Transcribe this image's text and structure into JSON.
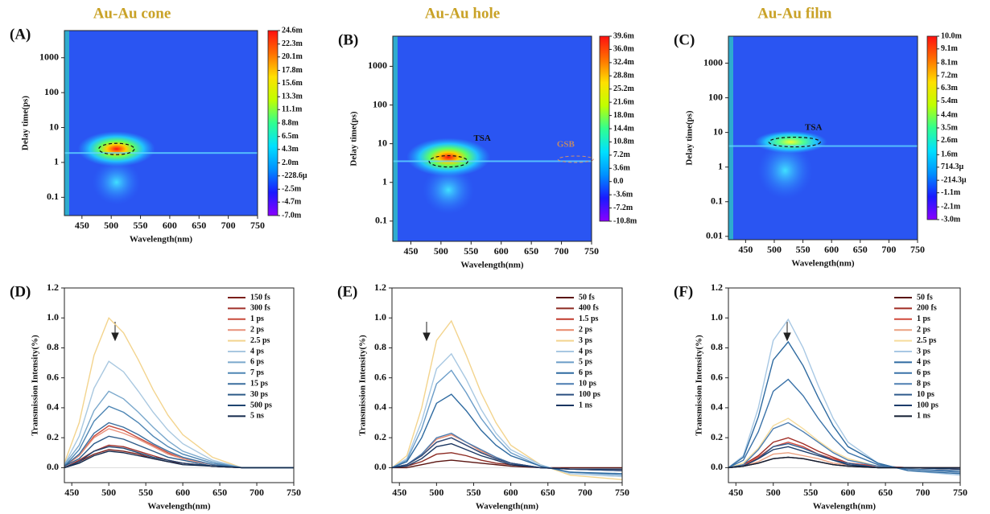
{
  "chart_data": [
    {
      "type": "heatmap",
      "label": "(A)",
      "title": "Au-Au cone",
      "x_label": "Wavelength(nm)",
      "y_label": "Delay time(ps)",
      "xlim": [
        420,
        750
      ],
      "xticks": [
        450,
        500,
        550,
        600,
        650,
        700,
        750
      ],
      "ylim": [
        0.03,
        6000
      ],
      "yticks": [
        0.1,
        1,
        10,
        100,
        1000
      ],
      "log_y": true,
      "annotations": [],
      "colormap": [
        "#8a00ff",
        "#1a1aff",
        "#0090ff",
        "#00e0ff",
        "#30ff90",
        "#c0ff00",
        "#ffe000",
        "#ff7000",
        "#ff1010"
      ],
      "clim": [
        -0.007,
        0.0246
      ],
      "cticks": [
        {
          "value": 0.0246,
          "label": "24.6m"
        },
        {
          "value": 0.0223,
          "label": "22.3m"
        },
        {
          "value": 0.0201,
          "label": "20.1m"
        },
        {
          "value": 0.0178,
          "label": "17.8m"
        },
        {
          "value": 0.0156,
          "label": "15.6m"
        },
        {
          "value": 0.0133,
          "label": "13.3m"
        },
        {
          "value": 0.0111,
          "label": "11.1m"
        },
        {
          "value": 0.0088,
          "label": "8.8m"
        },
        {
          "value": 0.0065,
          "label": "6.5m"
        },
        {
          "value": 0.0043,
          "label": "4.3m"
        },
        {
          "value": 0.002,
          "label": "2.0m"
        },
        {
          "value": -0.0002286,
          "label": "-228.6μ"
        },
        {
          "value": -0.0025,
          "label": "-2.5m"
        },
        {
          "value": -0.0047,
          "label": "-4.7m"
        },
        {
          "value": -0.007,
          "label": "-7.0m"
        }
      ]
    },
    {
      "type": "heatmap",
      "label": "(B)",
      "title": "Au-Au hole",
      "x_label": "Wavelength(nm)",
      "y_label": "Delay time(ps)",
      "xlim": [
        420,
        750
      ],
      "xticks": [
        450,
        500,
        550,
        600,
        650,
        700,
        750
      ],
      "ylim": [
        0.03,
        6000
      ],
      "yticks": [
        0.1,
        1,
        10,
        100,
        1000
      ],
      "log_y": true,
      "annotations": [
        "TSA",
        "GSB"
      ],
      "colormap": [
        "#8a00ff",
        "#1a1aff",
        "#0090ff",
        "#00e0ff",
        "#30ff90",
        "#c0ff00",
        "#ffe000",
        "#ff7000",
        "#ff1010"
      ],
      "clim": [
        -0.0108,
        0.0396
      ],
      "cticks": [
        {
          "value": 0.0396,
          "label": "39.6m"
        },
        {
          "value": 0.036,
          "label": "36.0m"
        },
        {
          "value": 0.0324,
          "label": "32.4m"
        },
        {
          "value": 0.0288,
          "label": "28.8m"
        },
        {
          "value": 0.0252,
          "label": "25.2m"
        },
        {
          "value": 0.0216,
          "label": "21.6m"
        },
        {
          "value": 0.018,
          "label": "18.0m"
        },
        {
          "value": 0.0144,
          "label": "14.4m"
        },
        {
          "value": 0.0108,
          "label": "10.8m"
        },
        {
          "value": 0.0072,
          "label": "7.2m"
        },
        {
          "value": 0.0036,
          "label": "3.6m"
        },
        {
          "value": 0,
          "label": "0.0"
        },
        {
          "value": -0.0036,
          "label": "-3.6m"
        },
        {
          "value": -0.0072,
          "label": "-7.2m"
        },
        {
          "value": -0.0108,
          "label": "-10.8m"
        }
      ]
    },
    {
      "type": "heatmap",
      "label": "(C)",
      "title": "Au-Au film",
      "x_label": "Wavelength(nm)",
      "y_label": "Delay time(ps)",
      "xlim": [
        420,
        750
      ],
      "xticks": [
        450,
        500,
        550,
        600,
        650,
        700,
        750
      ],
      "ylim": [
        0.008,
        6000
      ],
      "yticks": [
        0.01,
        0.1,
        1,
        10,
        100,
        1000
      ],
      "log_y": true,
      "annotations": [
        "TSA"
      ],
      "colormap": [
        "#8a00ff",
        "#1a1aff",
        "#0090ff",
        "#00e0ff",
        "#30ff90",
        "#c0ff00",
        "#ffe000",
        "#ff7000",
        "#ff1010"
      ],
      "clim": [
        -0.003,
        0.01
      ],
      "cticks": [
        {
          "value": 0.01,
          "label": "10.0m"
        },
        {
          "value": 0.0091,
          "label": "9.1m"
        },
        {
          "value": 0.0081,
          "label": "8.1m"
        },
        {
          "value": 0.0072,
          "label": "7.2m"
        },
        {
          "value": 0.0063,
          "label": "6.3m"
        },
        {
          "value": 0.0054,
          "label": "5.4m"
        },
        {
          "value": 0.0044,
          "label": "4.4m"
        },
        {
          "value": 0.0035,
          "label": "3.5m"
        },
        {
          "value": 0.0026,
          "label": "2.6m"
        },
        {
          "value": 0.0016,
          "label": "1.6m"
        },
        {
          "value": 0.0007143,
          "label": "714.3μ"
        },
        {
          "value": -0.0002143,
          "label": "-214.3μ"
        },
        {
          "value": -0.0011,
          "label": "-1.1m"
        },
        {
          "value": -0.0021,
          "label": "-2.1m"
        },
        {
          "value": -0.003,
          "label": "-3.0m"
        }
      ]
    },
    {
      "type": "line",
      "label": "(D)",
      "x_label": "Wavelength(nm)",
      "y_label": "Transmission Intensity(%)",
      "xlim": [
        440,
        750
      ],
      "xticks": [
        450,
        500,
        550,
        600,
        650,
        700,
        750
      ],
      "ylim": [
        -0.1,
        1.2
      ],
      "yticks": [
        {
          "value": 0,
          "label": "0.0"
        },
        0.2,
        0.4,
        0.6,
        0.8,
        {
          "value": 1,
          "label": "1.0"
        },
        1.2
      ],
      "x": [
        440,
        460,
        480,
        500,
        520,
        540,
        560,
        580,
        600,
        640,
        680,
        750
      ],
      "series": [
        {
          "name": "150 fs",
          "color": "#7a1f1a",
          "values": [
            0,
            0.04,
            0.09,
            0.12,
            0.11,
            0.09,
            0.06,
            0.04,
            0.03,
            0.01,
            0,
            0
          ]
        },
        {
          "name": "300 fs",
          "color": "#a0302a",
          "values": [
            0,
            0.05,
            0.11,
            0.15,
            0.14,
            0.11,
            0.08,
            0.05,
            0.03,
            0.01,
            0,
            0
          ]
        },
        {
          "name": "1 ps",
          "color": "#c84a3a",
          "values": [
            0.01,
            0.08,
            0.21,
            0.28,
            0.25,
            0.2,
            0.15,
            0.1,
            0.06,
            0.02,
            0,
            0
          ]
        },
        {
          "name": "2 ps",
          "color": "#e8907a",
          "values": [
            0.01,
            0.08,
            0.2,
            0.26,
            0.23,
            0.19,
            0.14,
            0.09,
            0.06,
            0.02,
            0,
            0
          ]
        },
        {
          "name": "2.5 ps",
          "color": "#f3d48e",
          "values": [
            0.03,
            0.3,
            0.75,
            1.0,
            0.9,
            0.72,
            0.52,
            0.35,
            0.22,
            0.07,
            0,
            0
          ]
        },
        {
          "name": "4 ps",
          "color": "#a9c8e0",
          "values": [
            0.02,
            0.21,
            0.53,
            0.71,
            0.64,
            0.51,
            0.37,
            0.25,
            0.16,
            0.05,
            0,
            0
          ]
        },
        {
          "name": "6 ps",
          "color": "#7aa8cc",
          "values": [
            0.02,
            0.15,
            0.38,
            0.51,
            0.46,
            0.37,
            0.27,
            0.18,
            0.11,
            0.04,
            0,
            0
          ]
        },
        {
          "name": "7 ps",
          "color": "#4e86b4",
          "values": [
            0.01,
            0.12,
            0.31,
            0.41,
            0.37,
            0.3,
            0.21,
            0.14,
            0.09,
            0.03,
            0,
            0
          ]
        },
        {
          "name": "15 ps",
          "color": "#3a6e9e",
          "values": [
            0.01,
            0.09,
            0.23,
            0.3,
            0.27,
            0.22,
            0.16,
            0.11,
            0.07,
            0.02,
            0,
            0
          ]
        },
        {
          "name": "30 ps",
          "color": "#2c5a88",
          "values": [
            0.01,
            0.06,
            0.16,
            0.21,
            0.19,
            0.15,
            0.11,
            0.07,
            0.05,
            0.01,
            0,
            0
          ]
        },
        {
          "name": "500 ps",
          "color": "#1f4470",
          "values": [
            0,
            0.04,
            0.11,
            0.14,
            0.13,
            0.1,
            0.07,
            0.05,
            0.03,
            0.01,
            0,
            0
          ]
        },
        {
          "name": "5 ns",
          "color": "#13294b",
          "values": [
            0,
            0.03,
            0.08,
            0.11,
            0.1,
            0.08,
            0.06,
            0.04,
            0.02,
            0.01,
            0,
            0
          ]
        }
      ]
    },
    {
      "type": "line",
      "label": "(E)",
      "x_label": "Wavelength(nm)",
      "y_label": "Transmission Intensity(%)",
      "xlim": [
        440,
        750
      ],
      "xticks": [
        450,
        500,
        550,
        600,
        650,
        700,
        750
      ],
      "ylim": [
        -0.1,
        1.2
      ],
      "yticks": [
        {
          "value": 0,
          "label": "0.0"
        },
        0.2,
        0.4,
        0.6,
        0.8,
        {
          "value": 1,
          "label": "1.0"
        },
        1.2
      ],
      "x": [
        440,
        460,
        480,
        500,
        520,
        540,
        560,
        580,
        600,
        640,
        680,
        750
      ],
      "series": [
        {
          "name": "50 fs",
          "color": "#5a1410",
          "values": [
            0,
            0,
            0.02,
            0.04,
            0.05,
            0.04,
            0.03,
            0.02,
            0.01,
            0,
            0,
            0
          ]
        },
        {
          "name": "400 fs",
          "color": "#8c2a22",
          "values": [
            0,
            0.01,
            0.04,
            0.09,
            0.1,
            0.08,
            0.05,
            0.03,
            0.02,
            0,
            -0.01,
            -0.01
          ]
        },
        {
          "name": "1.5 ps",
          "color": "#c0392b",
          "values": [
            0,
            0.02,
            0.08,
            0.17,
            0.2,
            0.15,
            0.1,
            0.06,
            0.03,
            0,
            -0.01,
            -0.02
          ]
        },
        {
          "name": "2 ps",
          "color": "#e8886a",
          "values": [
            0,
            0.02,
            0.09,
            0.19,
            0.22,
            0.17,
            0.11,
            0.07,
            0.03,
            0,
            -0.01,
            -0.02
          ]
        },
        {
          "name": "3 ps",
          "color": "#f3d48e",
          "values": [
            0,
            0.08,
            0.4,
            0.85,
            0.98,
            0.75,
            0.5,
            0.3,
            0.15,
            0.02,
            -0.05,
            -0.08
          ]
        },
        {
          "name": "4 ps",
          "color": "#a8c8e2",
          "values": [
            0,
            0.06,
            0.31,
            0.66,
            0.76,
            0.59,
            0.39,
            0.23,
            0.12,
            0.02,
            -0.04,
            -0.06
          ]
        },
        {
          "name": "5 ps",
          "color": "#6a9cc8",
          "values": [
            0,
            0.05,
            0.26,
            0.56,
            0.65,
            0.5,
            0.33,
            0.2,
            0.1,
            0.01,
            -0.03,
            -0.05
          ]
        },
        {
          "name": "6 ps",
          "color": "#2e6aa0",
          "values": [
            0,
            0.04,
            0.2,
            0.43,
            0.49,
            0.38,
            0.25,
            0.15,
            0.08,
            0.01,
            -0.03,
            -0.04
          ]
        },
        {
          "name": "10 ps",
          "color": "#4a7cb0",
          "values": [
            0,
            0.02,
            0.09,
            0.2,
            0.23,
            0.17,
            0.12,
            0.07,
            0.03,
            0,
            -0.01,
            -0.02
          ]
        },
        {
          "name": "100 ps",
          "color": "#2a4f80",
          "values": [
            0,
            0.02,
            0.08,
            0.17,
            0.2,
            0.15,
            0.1,
            0.06,
            0.03,
            0,
            -0.01,
            -0.02
          ]
        },
        {
          "name": "1 ns",
          "color": "#1a3560",
          "values": [
            0,
            0.01,
            0.06,
            0.14,
            0.16,
            0.12,
            0.08,
            0.05,
            0.02,
            0,
            -0.01,
            -0.01
          ]
        }
      ]
    },
    {
      "type": "line",
      "label": "(F)",
      "x_label": "Wavelength(nm)",
      "y_label": "Transmission Intensity(%)",
      "xlim": [
        440,
        750
      ],
      "xticks": [
        450,
        500,
        550,
        600,
        650,
        700,
        750
      ],
      "ylim": [
        -0.1,
        1.2
      ],
      "yticks": [
        {
          "value": 0,
          "label": "0.0"
        },
        0.2,
        0.4,
        0.6,
        0.8,
        {
          "value": 1,
          "label": "1.0"
        },
        1.2
      ],
      "x": [
        440,
        460,
        480,
        500,
        520,
        540,
        560,
        580,
        600,
        640,
        680,
        750
      ],
      "series": [
        {
          "name": "50 fs",
          "color": "#5a1410",
          "values": [
            0,
            0.01,
            0.03,
            0.06,
            0.07,
            0.06,
            0.04,
            0.02,
            0.01,
            0,
            0,
            0
          ]
        },
        {
          "name": "200 fs",
          "color": "#a02c24",
          "values": [
            0,
            0.02,
            0.08,
            0.17,
            0.2,
            0.16,
            0.11,
            0.07,
            0.03,
            0.01,
            0,
            -0.01
          ]
        },
        {
          "name": "1 ps",
          "color": "#d0483a",
          "values": [
            0,
            0.01,
            0.07,
            0.14,
            0.17,
            0.14,
            0.09,
            0.06,
            0.03,
            0.01,
            0,
            -0.01
          ]
        },
        {
          "name": "2 ps",
          "color": "#eaa080",
          "values": [
            0,
            0.01,
            0.04,
            0.09,
            0.1,
            0.08,
            0.06,
            0.03,
            0.02,
            0,
            0,
            -0.01
          ]
        },
        {
          "name": "2.5 ps",
          "color": "#f6dc9c",
          "values": [
            0,
            0.03,
            0.13,
            0.28,
            0.33,
            0.26,
            0.18,
            0.11,
            0.06,
            0.01,
            -0.01,
            -0.02
          ]
        },
        {
          "name": "3 ps",
          "color": "#a8c8e4",
          "values": [
            0,
            0.08,
            0.4,
            0.85,
            0.99,
            0.8,
            0.55,
            0.33,
            0.17,
            0.03,
            -0.02,
            -0.05
          ]
        },
        {
          "name": "4 ps",
          "color": "#2e6aa0",
          "values": [
            0,
            0.07,
            0.34,
            0.72,
            0.84,
            0.68,
            0.47,
            0.28,
            0.14,
            0.03,
            -0.02,
            -0.04
          ]
        },
        {
          "name": "6 ps",
          "color": "#3a72a8",
          "values": [
            0,
            0.05,
            0.24,
            0.51,
            0.59,
            0.48,
            0.33,
            0.2,
            0.1,
            0.02,
            -0.01,
            -0.03
          ]
        },
        {
          "name": "8 ps",
          "color": "#4e7fb2",
          "values": [
            0,
            0.02,
            0.12,
            0.26,
            0.3,
            0.24,
            0.17,
            0.1,
            0.05,
            0.01,
            -0.01,
            -0.02
          ]
        },
        {
          "name": "10 ps",
          "color": "#2e5a8c",
          "values": [
            0,
            0.01,
            0.06,
            0.14,
            0.16,
            0.13,
            0.09,
            0.05,
            0.03,
            0,
            0,
            -0.01
          ]
        },
        {
          "name": "100 ps",
          "color": "#1c3c6a",
          "values": [
            0,
            0.01,
            0.06,
            0.12,
            0.14,
            0.11,
            0.08,
            0.05,
            0.02,
            0,
            0,
            -0.01
          ]
        },
        {
          "name": "1 ns",
          "color": "#101c30",
          "values": [
            0,
            0.01,
            0.03,
            0.06,
            0.07,
            0.06,
            0.04,
            0.02,
            0.01,
            0,
            0,
            0
          ]
        }
      ]
    }
  ]
}
